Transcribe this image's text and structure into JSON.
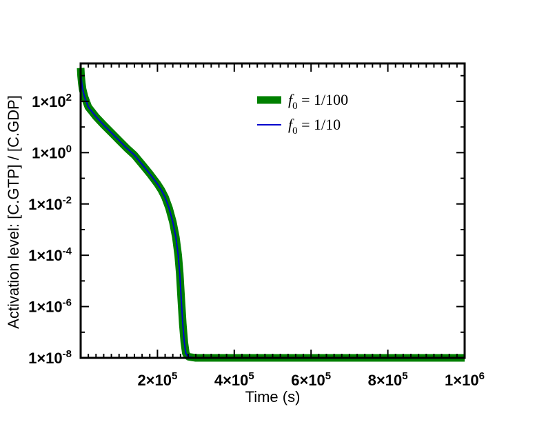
{
  "chart_data": {
    "type": "line",
    "xlabel": "Time (s)",
    "ylabel": "Activation level:  [C.GTP] / [C.GDP]",
    "x_scale": "linear",
    "y_scale": "log",
    "xlim": [
      0,
      1000000
    ],
    "ylim": [
      1e-08,
      3000
    ],
    "grid": false,
    "legend_position": "top-right",
    "x_ticks": [
      {
        "value": 200000,
        "mantissa": "2×10",
        "exponent": "5"
      },
      {
        "value": 400000,
        "mantissa": "4×10",
        "exponent": "5"
      },
      {
        "value": 600000,
        "mantissa": "6×10",
        "exponent": "5"
      },
      {
        "value": 800000,
        "mantissa": "8×10",
        "exponent": "5"
      },
      {
        "value": 1000000,
        "mantissa": "1×10",
        "exponent": "6"
      }
    ],
    "y_ticks": [
      {
        "value": 1e-08,
        "mantissa": "1×10",
        "exponent": "-8"
      },
      {
        "value": 1e-06,
        "mantissa": "1×10",
        "exponent": "-6"
      },
      {
        "value": 0.0001,
        "mantissa": "1×10",
        "exponent": "-4"
      },
      {
        "value": 0.01,
        "mantissa": "1×10",
        "exponent": "-2"
      },
      {
        "value": 1,
        "mantissa": "1×10",
        "exponent": "0"
      },
      {
        "value": 100,
        "mantissa": "1×10",
        "exponent": "2"
      }
    ],
    "series": [
      {
        "name": "f0 = 1/100",
        "label_symbol": "f",
        "label_subscript": "0",
        "label_rest": " = 1/100",
        "color": "#008000",
        "style": "thick",
        "x": [
          0,
          1000,
          3000,
          5000,
          10000,
          20000,
          40000,
          60000,
          80000,
          100000,
          120000,
          140000,
          160000,
          180000,
          200000,
          210000,
          220000,
          230000,
          240000,
          248000,
          254000,
          258000,
          262000,
          266000,
          270000,
          274000,
          278000,
          282000,
          290000,
          300000,
          500000,
          700000,
          1000000
        ],
        "y": [
          2000,
          1000,
          500,
          300,
          150,
          60,
          25,
          12,
          6,
          3,
          1.5,
          0.8,
          0.35,
          0.15,
          0.06,
          0.035,
          0.018,
          0.007,
          0.002,
          0.0005,
          0.0001,
          2e-05,
          2e-06,
          2e-07,
          4e-08,
          1.5e-08,
          1.2e-08,
          1.1e-08,
          1.05e-08,
          1e-08,
          1e-08,
          1e-08,
          1e-08
        ]
      },
      {
        "name": "f0 = 1/10",
        "label_symbol": "f",
        "label_subscript": "0",
        "label_rest": " = 1/10",
        "color": "#0000cc",
        "style": "thin",
        "x": [
          0,
          1000,
          3000,
          5000,
          10000,
          20000,
          40000,
          60000,
          80000,
          100000,
          120000,
          140000,
          160000,
          180000,
          200000,
          210000,
          220000,
          230000,
          240000,
          248000,
          254000,
          258000,
          262000,
          266000,
          270000,
          274000,
          278000,
          282000,
          290000,
          300000,
          500000,
          700000,
          1000000
        ],
        "y": [
          2000,
          1000,
          500,
          300,
          150,
          60,
          25,
          12,
          6,
          3,
          1.5,
          0.8,
          0.35,
          0.15,
          0.06,
          0.035,
          0.018,
          0.007,
          0.002,
          0.0005,
          0.0001,
          2e-05,
          2e-06,
          2e-07,
          4e-08,
          1.5e-08,
          1.2e-08,
          1.1e-08,
          1.05e-08,
          1e-08,
          1e-08,
          1e-08,
          1e-08
        ]
      }
    ]
  }
}
